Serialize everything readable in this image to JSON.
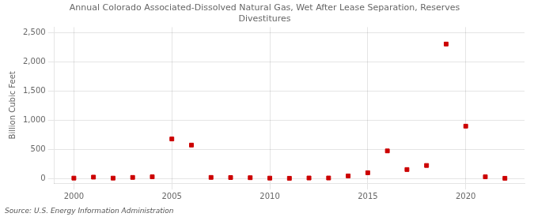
{
  "chart_data": {
    "type": "scatter",
    "title": "Annual Colorado Associated-Dissolved Natural Gas, Wet After Lease Separation, Reserves\nDivestitures",
    "ylabel": "Billion Cubic Feet",
    "annotations": [
      "Source: U.S. Energy Information Administration"
    ],
    "x": [
      2000,
      2001,
      2002,
      2003,
      2004,
      2005,
      2006,
      2007,
      2008,
      2009,
      2010,
      2011,
      2012,
      2013,
      2014,
      2015,
      2016,
      2017,
      2018,
      2019,
      2020,
      2021,
      2022
    ],
    "values": [
      8,
      25,
      8,
      20,
      30,
      680,
      575,
      20,
      18,
      15,
      8,
      5,
      10,
      10,
      45,
      100,
      475,
      155,
      225,
      2310,
      900,
      30,
      5
    ],
    "color": "#cc0000",
    "marker": "square",
    "xlim": [
      1999,
      2023
    ],
    "xticks": [
      2000,
      2005,
      2010,
      2015,
      2020
    ],
    "ylim": [
      -80,
      2600
    ],
    "yticks": [
      0,
      500,
      {
        "value": 1000,
        "label": "1,000"
      },
      {
        "value": 1500,
        "label": "1,500"
      },
      {
        "value": 2000,
        "label": "2,000"
      },
      {
        "value": 2500,
        "label": "2,500"
      }
    ],
    "grid": true
  }
}
